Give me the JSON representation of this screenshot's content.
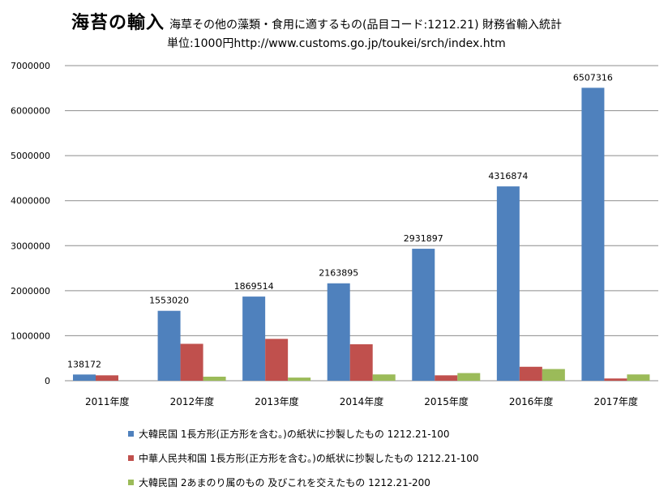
{
  "chart_data": {
    "type": "bar",
    "title": "海苔の輸入",
    "subtitle": "海草その他の藻類・食用に適するもの(品目コード:1212.21)  財務省輸入統計",
    "unit_note": "単位:1000円http://www.customs.go.jp/toukei/srch/index.htm",
    "categories": [
      "2011年度",
      "2012年度",
      "2013年度",
      "2014年度",
      "2015年度",
      "2016年度",
      "2017年度"
    ],
    "ylim": [
      0,
      7000000
    ],
    "yticks": [
      "0",
      "1000000",
      "2000000",
      "3000000",
      "4000000",
      "5000000",
      "6000000",
      "7000000"
    ],
    "ytick_values": [
      0,
      1000000,
      2000000,
      3000000,
      4000000,
      5000000,
      6000000,
      7000000
    ],
    "grid": true,
    "legend_position": "bottom",
    "series": [
      {
        "name": "大韓民国 1長方形(正方形を含む。)の紙状に抄製したもの 1212.21-100",
        "color": "#4F81BD",
        "values": [
          138172,
          1553020,
          1869514,
          2163895,
          2931897,
          4316874,
          6507316
        ],
        "labels": [
          "138172",
          "1553020",
          "1869514",
          "2163895",
          "2931897",
          "4316874",
          "6507316"
        ]
      },
      {
        "name": "中華人民共和国 1長方形(正方形を含む。)の紙状に抄製したもの 1212.21-100",
        "color": "#C0504D",
        "values": [
          120000,
          820000,
          930000,
          810000,
          120000,
          310000,
          50000
        ]
      },
      {
        "name": "大韓民国 2あまのり属のもの 及びこれを交えたもの 1212.21-200",
        "color": "#9BBB59",
        "values": [
          0,
          90000,
          70000,
          140000,
          170000,
          260000,
          140000
        ]
      }
    ]
  }
}
